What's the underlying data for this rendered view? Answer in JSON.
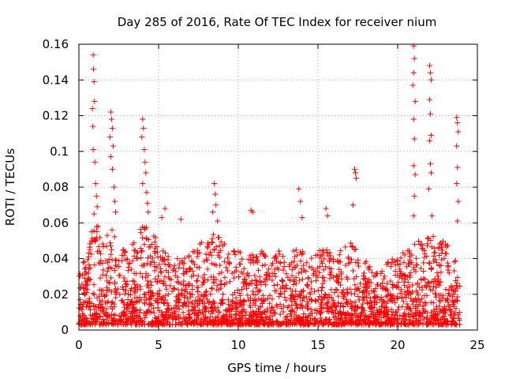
{
  "chart_data": {
    "type": "scatter",
    "title": "Day 285 of 2016, Rate Of TEC Index for receiver nium",
    "xlabel": "GPS time / hours",
    "ylabel": "ROTI / TECUs",
    "xlim": [
      0,
      25
    ],
    "ylim": [
      0,
      0.16
    ],
    "xticks": [
      0,
      5,
      10,
      15,
      20,
      25
    ],
    "yticks": [
      0,
      0.02,
      0.04,
      0.06,
      0.08,
      0.1,
      0.12,
      0.14,
      0.16
    ],
    "xtick_labels": [
      "0",
      "5",
      "10",
      "15",
      "20",
      "25"
    ],
    "ytick_labels": [
      "0",
      "0.02",
      "0.04",
      "0.06",
      "0.08",
      "0.1",
      "0.12",
      "0.14",
      "0.16"
    ],
    "grid": true,
    "marker": "plus",
    "color": "#ff0000",
    "series": [
      {
        "name": "ROTI",
        "points": [
          [
            0.9,
            0.154
          ],
          [
            0.92,
            0.146
          ],
          [
            0.95,
            0.139
          ],
          [
            0.85,
            0.124
          ],
          [
            0.98,
            0.128
          ],
          [
            0.88,
            0.114
          ],
          [
            0.9,
            0.101
          ],
          [
            1.0,
            0.094
          ],
          [
            1.05,
            0.082
          ],
          [
            1.1,
            0.075
          ],
          [
            1.15,
            0.069
          ],
          [
            0.95,
            0.065
          ],
          [
            1.2,
            0.058
          ],
          [
            0.8,
            0.055
          ],
          [
            2.0,
            0.122
          ],
          [
            2.05,
            0.118
          ],
          [
            2.1,
            0.113
          ],
          [
            1.95,
            0.108
          ],
          [
            2.15,
            0.103
          ],
          [
            2.0,
            0.097
          ],
          [
            2.1,
            0.09
          ],
          [
            2.2,
            0.08
          ],
          [
            2.25,
            0.072
          ],
          [
            2.3,
            0.066
          ],
          [
            4.0,
            0.118
          ],
          [
            4.05,
            0.113
          ],
          [
            3.95,
            0.108
          ],
          [
            4.1,
            0.101
          ],
          [
            4.15,
            0.094
          ],
          [
            4.2,
            0.088
          ],
          [
            4.0,
            0.082
          ],
          [
            4.25,
            0.077
          ],
          [
            4.3,
            0.071
          ],
          [
            4.35,
            0.066
          ],
          [
            5.2,
            0.063
          ],
          [
            5.4,
            0.068
          ],
          [
            6.4,
            0.062
          ],
          [
            8.5,
            0.082
          ],
          [
            8.55,
            0.076
          ],
          [
            8.6,
            0.07
          ],
          [
            8.4,
            0.066
          ],
          [
            8.7,
            0.061
          ],
          [
            10.8,
            0.067
          ],
          [
            10.9,
            0.066
          ],
          [
            13.8,
            0.079
          ],
          [
            13.9,
            0.072
          ],
          [
            14.0,
            0.063
          ],
          [
            15.5,
            0.068
          ],
          [
            15.6,
            0.064
          ],
          [
            17.3,
            0.09
          ],
          [
            17.35,
            0.088
          ],
          [
            17.4,
            0.085
          ],
          [
            17.2,
            0.07
          ],
          [
            21.0,
            0.159
          ],
          [
            21.05,
            0.152
          ],
          [
            21.0,
            0.144
          ],
          [
            20.95,
            0.137
          ],
          [
            21.1,
            0.128
          ],
          [
            21.0,
            0.118
          ],
          [
            21.05,
            0.107
          ],
          [
            21.0,
            0.092
          ],
          [
            21.1,
            0.087
          ],
          [
            21.05,
            0.075
          ],
          [
            21.0,
            0.064
          ],
          [
            22.0,
            0.148
          ],
          [
            22.05,
            0.144
          ],
          [
            22.1,
            0.14
          ],
          [
            22.0,
            0.129
          ],
          [
            22.05,
            0.121
          ],
          [
            22.1,
            0.109
          ],
          [
            22.0,
            0.106
          ],
          [
            22.05,
            0.093
          ],
          [
            22.1,
            0.088
          ],
          [
            21.95,
            0.079
          ],
          [
            22.15,
            0.064
          ],
          [
            23.7,
            0.119
          ],
          [
            23.75,
            0.116
          ],
          [
            23.8,
            0.111
          ],
          [
            23.7,
            0.103
          ],
          [
            23.75,
            0.091
          ],
          [
            23.7,
            0.082
          ],
          [
            23.8,
            0.072
          ],
          [
            23.75,
            0.061
          ]
        ]
      }
    ],
    "envelope": {
      "hours": [
        0,
        0.5,
        1,
        1.5,
        2,
        2.5,
        3,
        3.5,
        4,
        4.5,
        5,
        5.5,
        6,
        6.5,
        7,
        7.5,
        8,
        8.5,
        9,
        9.5,
        10,
        10.5,
        11,
        11.5,
        12,
        12.5,
        13,
        13.5,
        14,
        14.5,
        15,
        15.5,
        16,
        16.5,
        17,
        17.5,
        18,
        18.5,
        19,
        19.5,
        20,
        20.5,
        21,
        21.5,
        22,
        22.5,
        23,
        23.5,
        23.9
      ],
      "typical_max": [
        0.03,
        0.045,
        0.06,
        0.05,
        0.06,
        0.045,
        0.045,
        0.05,
        0.06,
        0.055,
        0.05,
        0.045,
        0.04,
        0.04,
        0.045,
        0.05,
        0.05,
        0.055,
        0.05,
        0.045,
        0.045,
        0.04,
        0.045,
        0.045,
        0.04,
        0.045,
        0.04,
        0.045,
        0.045,
        0.04,
        0.045,
        0.05,
        0.045,
        0.045,
        0.05,
        0.045,
        0.04,
        0.035,
        0.035,
        0.04,
        0.04,
        0.045,
        0.05,
        0.05,
        0.055,
        0.05,
        0.05,
        0.045,
        0.03
      ],
      "floor": 0.003
    }
  }
}
